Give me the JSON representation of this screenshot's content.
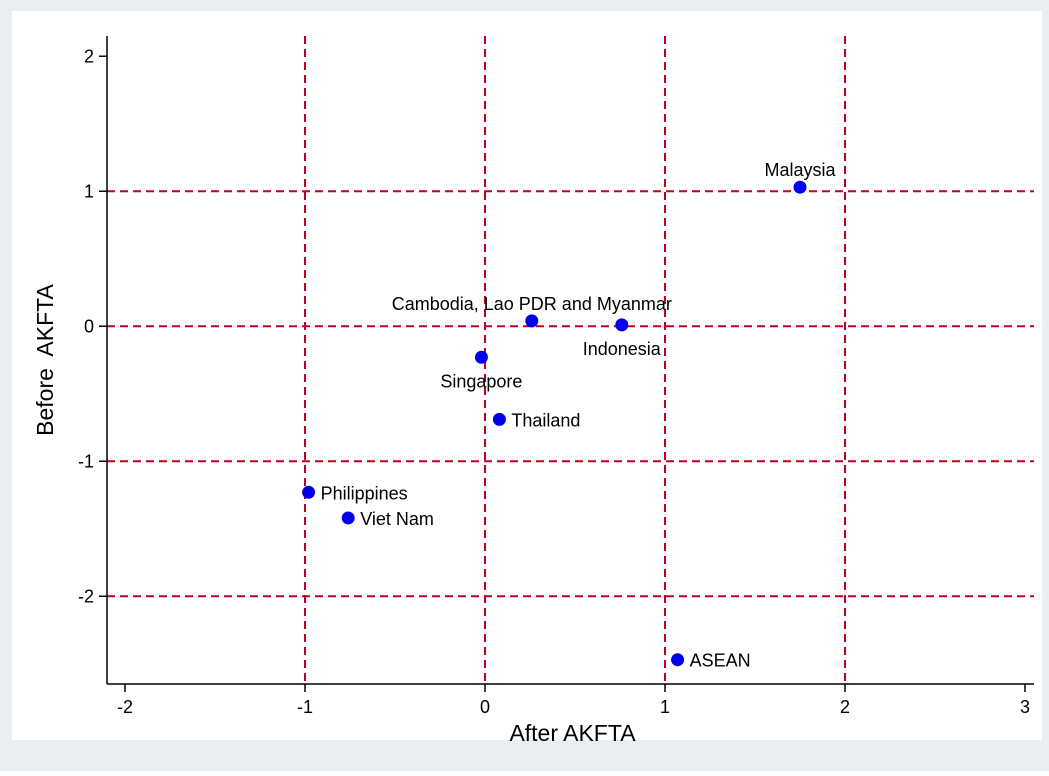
{
  "colors": {
    "outer_background": "#e8eef2",
    "plot_background": "#ffffff",
    "grid": "#c00020",
    "marker": "#0000ee",
    "axis": "#000000",
    "text": "#000000"
  },
  "chart_data": {
    "type": "scatter",
    "xlabel": "After AKFTA",
    "ylabel": "Before  AKFTA",
    "xlim": [
      -2.1,
      3.05
    ],
    "ylim": [
      -2.65,
      2.15
    ],
    "xticks": [
      -2,
      -1,
      0,
      1,
      2,
      3
    ],
    "yticks": [
      -2,
      -1,
      0,
      1,
      2
    ],
    "xtick_labels": [
      "-2",
      "-1",
      "0",
      "1",
      "2",
      "3"
    ],
    "ytick_labels": [
      "-2",
      "-1",
      "0",
      "1",
      "2"
    ],
    "grid": {
      "x_lines": [
        -1,
        0,
        1,
        2
      ],
      "y_lines": [
        -2,
        -1,
        0,
        1
      ],
      "style": "dashed"
    },
    "legend": "none",
    "points": [
      {
        "label": "Malaysia",
        "x": 1.75,
        "y": 1.03,
        "label_position": "above"
      },
      {
        "label": "Cambodia, Lao PDR and Myanmar",
        "x": 0.26,
        "y": 0.04,
        "label_position": "above"
      },
      {
        "label": "Indonesia",
        "x": 0.76,
        "y": 0.01,
        "label_position": "below"
      },
      {
        "label": "Singapore",
        "x": -0.02,
        "y": -0.23,
        "label_position": "below"
      },
      {
        "label": "Thailand",
        "x": 0.08,
        "y": -0.69,
        "label_position": "right"
      },
      {
        "label": "Philippines",
        "x": -0.98,
        "y": -1.23,
        "label_position": "right"
      },
      {
        "label": "Viet Nam",
        "x": -0.76,
        "y": -1.42,
        "label_position": "right"
      },
      {
        "label": "ASEAN",
        "x": 1.07,
        "y": -2.47,
        "label_position": "right"
      }
    ]
  }
}
